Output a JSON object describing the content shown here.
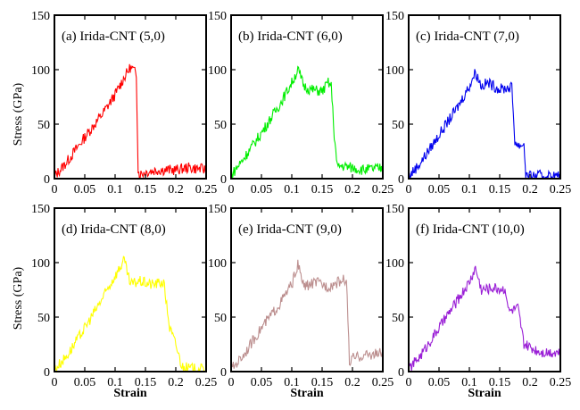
{
  "figure": {
    "ylabel": "Stress (GPa)",
    "xlabel": "Strain"
  },
  "chart_data": [
    {
      "type": "line",
      "title": "(a) Irida-CNT (5,0)",
      "color": "#ff0000",
      "xlim": [
        0,
        0.25
      ],
      "ylim": [
        0,
        150
      ],
      "xticks": [
        "0",
        "0.05",
        "0.1",
        "0.15",
        "0.2",
        "0.25"
      ],
      "yticks": [
        "0",
        "50",
        "100",
        "150"
      ],
      "x": [
        0,
        0.02,
        0.05,
        0.08,
        0.1,
        0.115,
        0.125,
        0.13,
        0.135,
        0.138,
        0.14,
        0.15,
        0.17,
        0.2,
        0.22,
        0.24,
        0.25
      ],
      "y": [
        2,
        15,
        38,
        60,
        77,
        93,
        102,
        100,
        95,
        8,
        4,
        6,
        8,
        8,
        10,
        9,
        8
      ]
    },
    {
      "type": "line",
      "title": "(b) Irida-CNT (6,0)",
      "color": "#00ee00",
      "xlim": [
        0,
        0.25
      ],
      "ylim": [
        0,
        150
      ],
      "xticks": [
        "0",
        "0.05",
        "0.1",
        "0.15",
        "0.2",
        "0.25"
      ],
      "yticks": [
        "0",
        "50",
        "100",
        "150"
      ],
      "x": [
        0,
        0.02,
        0.05,
        0.08,
        0.1,
        0.11,
        0.12,
        0.13,
        0.15,
        0.16,
        0.165,
        0.17,
        0.175,
        0.18,
        0.2,
        0.22,
        0.25
      ],
      "y": [
        3,
        18,
        42,
        68,
        88,
        100,
        85,
        82,
        80,
        88,
        85,
        40,
        10,
        12,
        10,
        8,
        10
      ]
    },
    {
      "type": "line",
      "title": "(c) Irida-CNT (7,0)",
      "color": "#0000ee",
      "xlim": [
        0,
        0.25
      ],
      "ylim": [
        0,
        150
      ],
      "xticks": [
        "0",
        "0.05",
        "0.1",
        "0.15",
        "0.2",
        "0.25"
      ],
      "yticks": [
        "0",
        "50",
        "100",
        "150"
      ],
      "x": [
        0,
        0.02,
        0.05,
        0.08,
        0.1,
        0.11,
        0.12,
        0.13,
        0.15,
        0.17,
        0.175,
        0.18,
        0.19,
        0.193,
        0.2,
        0.22,
        0.25
      ],
      "y": [
        2,
        15,
        40,
        65,
        85,
        98,
        85,
        88,
        82,
        84,
        35,
        30,
        32,
        3,
        2,
        3,
        2
      ]
    },
    {
      "type": "line",
      "title": "(d) Irida-CNT (8,0)",
      "color": "#ffff00",
      "xlim": [
        0,
        0.25
      ],
      "ylim": [
        0,
        150
      ],
      "xticks": [
        "0",
        "0.05",
        "0.1",
        "0.15",
        "0.2",
        "0.25"
      ],
      "yticks": [
        "0",
        "50",
        "100",
        "150"
      ],
      "x": [
        0,
        0.02,
        0.05,
        0.08,
        0.1,
        0.115,
        0.125,
        0.14,
        0.16,
        0.18,
        0.19,
        0.2,
        0.205,
        0.21,
        0.22,
        0.25
      ],
      "y": [
        2,
        14,
        40,
        68,
        88,
        102,
        80,
        83,
        80,
        82,
        40,
        25,
        15,
        5,
        3,
        2
      ]
    },
    {
      "type": "line",
      "title": "(e) Irida-CNT (9,0)",
      "color": "#bc8f8f",
      "xlim": [
        0,
        0.25
      ],
      "ylim": [
        0,
        150
      ],
      "xticks": [
        "0",
        "0.05",
        "0.1",
        "0.15",
        "0.2",
        "0.25"
      ],
      "yticks": [
        "0",
        "50",
        "100",
        "150"
      ],
      "x": [
        0,
        0.02,
        0.05,
        0.08,
        0.1,
        0.11,
        0.12,
        0.14,
        0.16,
        0.18,
        0.19,
        0.195,
        0.2,
        0.22,
        0.25
      ],
      "y": [
        2,
        15,
        40,
        62,
        80,
        98,
        78,
        82,
        78,
        83,
        85,
        8,
        12,
        15,
        17
      ]
    },
    {
      "type": "line",
      "title": "(f) Irida-CNT (10,0)",
      "color": "#9a1fd6",
      "xlim": [
        0,
        0.25
      ],
      "ylim": [
        0,
        150
      ],
      "xticks": [
        "0",
        "0.05",
        "0.1",
        "0.15",
        "0.2",
        "0.25"
      ],
      "yticks": [
        "0",
        "50",
        "100",
        "150"
      ],
      "x": [
        0,
        0.02,
        0.05,
        0.08,
        0.1,
        0.11,
        0.12,
        0.14,
        0.16,
        0.165,
        0.18,
        0.19,
        0.2,
        0.22,
        0.25
      ],
      "y": [
        2,
        15,
        40,
        65,
        82,
        95,
        75,
        77,
        75,
        55,
        58,
        25,
        22,
        18,
        18
      ]
    }
  ]
}
